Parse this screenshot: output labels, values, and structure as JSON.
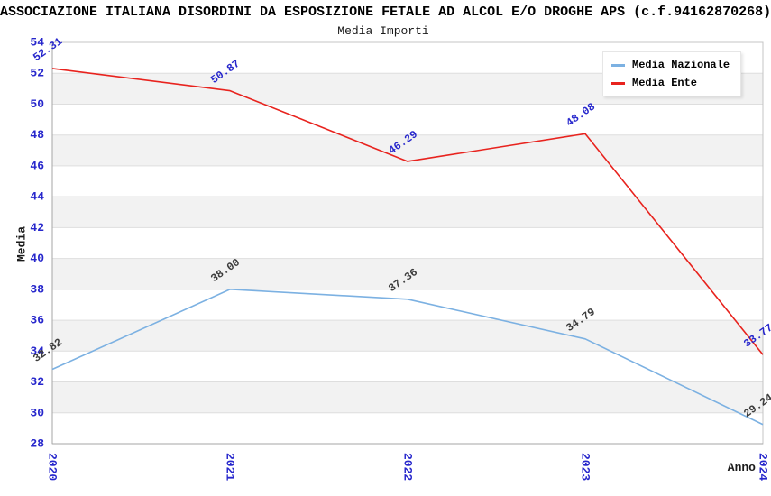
{
  "header": {
    "title": "ASSOCIAZIONE ITALIANA DISORDINI DA ESPOSIZIONE FETALE AD ALCOL E/O DROGHE APS (c.f.94162870268)",
    "subtitle": "Media Importi"
  },
  "legend": {
    "items": [
      {
        "label": "Media Nazionale",
        "color": "#7cb1e2"
      },
      {
        "label": "Media Ente",
        "color": "#e8231e"
      }
    ]
  },
  "chart_data": {
    "type": "line",
    "title": "Media Importi",
    "x": [
      2020,
      2021,
      2022,
      2023,
      2024
    ],
    "series": [
      {
        "name": "Media Nazionale",
        "color": "#7cb1e2",
        "label_color": "#3c3c3c",
        "values": [
          32.82,
          38.0,
          37.36,
          34.79,
          29.24
        ],
        "labels": [
          "32.82",
          "38.00",
          "37.36",
          "34.79",
          "29.24"
        ]
      },
      {
        "name": "Media Ente",
        "color": "#e8231e",
        "label_color": "#2727cc",
        "values": [
          52.31,
          50.87,
          46.29,
          48.08,
          33.77
        ],
        "labels": [
          "52.31",
          "50.87",
          "46.29",
          "48.08",
          "33.77"
        ]
      }
    ],
    "xlabel": "Anno",
    "ylabel": "Media",
    "ylim": [
      28,
      54
    ],
    "ytick_step": 2,
    "grid": "horizontal-bands",
    "legend_position": "top-right",
    "tick_color": "#2727cc",
    "band_color": "#f2f2f2",
    "gridline_color": "#dedede",
    "axis_color": "#a6a6a6",
    "border_color": "#c4c4c4"
  }
}
